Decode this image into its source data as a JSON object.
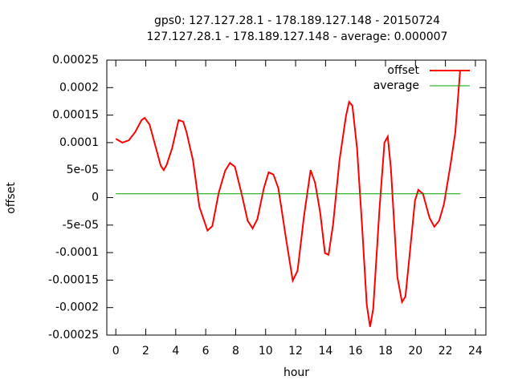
{
  "chart_data": {
    "type": "line",
    "title": "gps0: 127.127.28.1 - 178.189.127.148 - 20150724",
    "subtitle": "127.127.28.1 - 178.189.127.148 - average: 0.000007",
    "x_label": "hour",
    "y_label": "offset",
    "xlim": [
      -0.6,
      24.7
    ],
    "xticks": [
      0,
      2,
      4,
      6,
      8,
      10,
      12,
      14,
      16,
      18,
      20,
      22,
      24
    ],
    "ylim": [
      -0.00025,
      0.00025
    ],
    "yticks": [
      -0.00025,
      -0.0002,
      -0.00015,
      -0.0001,
      {
        "value": -5e-05,
        "label": "-5e-05"
      },
      0,
      {
        "value": 5e-05,
        "label": "5e-05"
      },
      0.0001,
      0.00015,
      0.0002,
      0.00025
    ],
    "legend": "top-right",
    "series": [
      {
        "name": "offset",
        "color": "#ff0000",
        "x": [
          0,
          0.43,
          0.86,
          1.29,
          1.72,
          1.93,
          2.25,
          2.68,
          3.0,
          3.2,
          3.4,
          3.76,
          4.19,
          4.5,
          4.72,
          5.15,
          5.58,
          6.12,
          6.44,
          6.87,
          7.3,
          7.62,
          7.95,
          8.38,
          8.8,
          9.13,
          9.45,
          9.88,
          10.2,
          10.52,
          10.85,
          11.38,
          11.81,
          12.13,
          12.56,
          13.0,
          13.3,
          13.64,
          13.96,
          14.2,
          14.5,
          14.93,
          15.36,
          15.57,
          15.79,
          16.1,
          16.43,
          16.75,
          16.97,
          17.18,
          17.6,
          17.93,
          18.15,
          18.36,
          18.79,
          19.1,
          19.33,
          19.65,
          19.97,
          20.19,
          20.5,
          20.94,
          21.26,
          21.58,
          21.9,
          22.34,
          22.66,
          22.98
        ],
        "values": [
          0.000107,
          0.0001,
          0.000104,
          0.000119,
          0.000141,
          0.000145,
          0.000133,
          9e-05,
          5.8e-05,
          5e-05,
          6e-05,
          9e-05,
          0.000141,
          0.000138,
          0.000119,
          6.8e-05,
          -1.7e-05,
          -6e-05,
          -5.2e-05,
          9e-06,
          4.9e-05,
          6.3e-05,
          5.6e-05,
          9e-06,
          -4.2e-05,
          -5.6e-05,
          -3.9e-05,
          1.7e-05,
          4.6e-05,
          4.2e-05,
          1.7e-05,
          -7.8e-05,
          -0.000151,
          -0.000133,
          -3.4e-05,
          5e-05,
          2.7e-05,
          -2.7e-05,
          -0.000101,
          -0.000104,
          -4.9e-05,
          6.8e-05,
          0.000148,
          0.000174,
          0.000167,
          9e-05,
          -4.9e-05,
          -0.000195,
          -0.000235,
          -0.000202,
          -2e-05,
          0.0001,
          0.000111,
          5.3e-05,
          -0.000144,
          -0.00019,
          -0.00018,
          -9.3e-05,
          -5e-06,
          1.4e-05,
          7e-06,
          -3.7e-05,
          -5.3e-05,
          -4.2e-05,
          -1.2e-05,
          6e-05,
          0.000119,
          0.000231
        ]
      },
      {
        "name": "average",
        "color": "#00a000",
        "x": [
          0,
          23
        ],
        "values": [
          7e-06,
          7e-06
        ]
      }
    ]
  }
}
